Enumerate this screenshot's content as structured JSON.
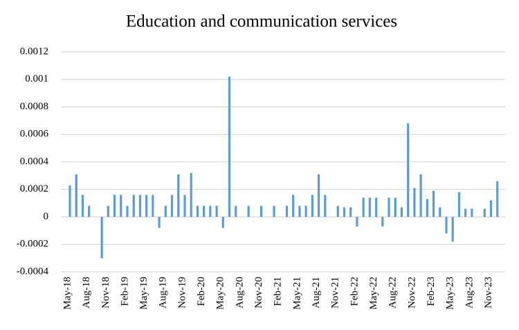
{
  "chart_data": {
    "type": "bar",
    "title": "Education and communication services",
    "categories": [
      "May-18",
      null,
      null,
      "Aug-18",
      null,
      null,
      "Nov-18",
      null,
      null,
      "Feb-19",
      null,
      null,
      "May-19",
      null,
      null,
      "Aug-19",
      null,
      null,
      "Nov-19",
      null,
      null,
      "Feb-20",
      null,
      null,
      "May-20",
      null,
      null,
      "Aug-20",
      null,
      null,
      "Nov-20",
      null,
      null,
      "Feb-21",
      null,
      null,
      "May-21",
      null,
      null,
      "Aug-21",
      null,
      null,
      "Nov-21",
      null,
      null,
      "Feb-22",
      null,
      null,
      "May-22",
      null,
      null,
      "Aug-22",
      null,
      null,
      "Nov-22",
      null,
      null,
      "Feb-23",
      null,
      null,
      "May-23",
      null,
      null,
      "Aug-23",
      null,
      null,
      "Nov-23",
      null
    ],
    "values": [
      0.00023,
      0.00031,
      0.00016,
      8e-05,
      0,
      -0.0003,
      8e-05,
      0.00016,
      0.00016,
      8e-05,
      0.00016,
      0.00016,
      0.00016,
      0.00016,
      -8e-05,
      8e-05,
      0.00016,
      0.00031,
      0.00016,
      0.00032,
      8e-05,
      8e-05,
      8e-05,
      8e-05,
      -8e-05,
      0.00102,
      8e-05,
      0,
      8e-05,
      0,
      8e-05,
      0,
      8e-05,
      0,
      8e-05,
      0.00016,
      8e-05,
      8e-05,
      0.00016,
      0.00031,
      0.00016,
      0,
      8e-05,
      7e-05,
      7e-05,
      -7e-05,
      0.00014,
      0.00014,
      0.00014,
      -7e-05,
      0.00014,
      0.00014,
      7e-05,
      0.00068,
      0.00021,
      0.00031,
      0.00013,
      0.00019,
      7e-05,
      -0.00012,
      -0.00018,
      0.00018,
      6e-05,
      6e-05,
      0,
      6e-05,
      0.00012,
      0.00026
    ],
    "color": "#5b9bd5",
    "ylim": [
      -0.0004,
      0.0012
    ],
    "yticks": [
      -0.0004,
      -0.0002,
      0,
      0.0002,
      0.0004,
      0.0006,
      0.0008,
      0.001,
      0.0012
    ],
    "grid": true
  }
}
